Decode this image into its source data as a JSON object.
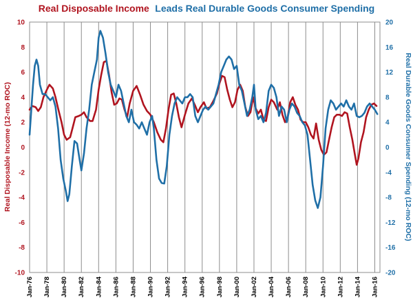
{
  "chart_data": {
    "type": "line",
    "title_part1": "Real Disposable Income",
    "title_part2": "Leads Real Durable Goods Consumer Spending",
    "ylabel_left": "Real Disposable Income (12-mo ROC)",
    "ylabel_right": "Real Durable Goods Consumer Spending (12-mo ROC)",
    "xlabel": "",
    "ylim_left": [
      -10,
      10
    ],
    "ylim_right": [
      -20,
      20
    ],
    "yticks_left": [
      -10,
      -8,
      -6,
      -4,
      -2,
      0,
      2,
      4,
      6,
      8,
      10
    ],
    "yticks_right": [
      -20,
      -16,
      -12,
      -8,
      -4,
      0,
      4,
      8,
      12,
      16,
      20
    ],
    "x_range": [
      1976.0,
      2016.6
    ],
    "xtick_labels": [
      "Jan-76",
      "Jan-78",
      "Jan-80",
      "Jan-82",
      "Jan-84",
      "Jan-86",
      "Jan-88",
      "Jan-90",
      "Jan-92",
      "Jan-94",
      "Jan-96",
      "Jan-98",
      "Jan-00",
      "Jan-02",
      "Jan-04",
      "Jan-06",
      "Jan-08",
      "Jan-10",
      "Jan-12",
      "Jan-14",
      "Jan-16"
    ],
    "grid": "vertical",
    "series": [
      {
        "name": "Real Disposable Income",
        "axis": "left",
        "color": "#b0141f",
        "points": [
          [
            1976.0,
            3.0
          ],
          [
            1976.3,
            3.3
          ],
          [
            1976.7,
            3.2
          ],
          [
            1977.0,
            2.9
          ],
          [
            1977.3,
            3.2
          ],
          [
            1977.6,
            4.0
          ],
          [
            1978.0,
            4.6
          ],
          [
            1978.3,
            5.0
          ],
          [
            1978.7,
            4.7
          ],
          [
            1979.0,
            4.0
          ],
          [
            1979.3,
            3.1
          ],
          [
            1979.7,
            2.0
          ],
          [
            1980.0,
            1.0
          ],
          [
            1980.3,
            0.6
          ],
          [
            1980.7,
            0.8
          ],
          [
            1981.0,
            1.6
          ],
          [
            1981.3,
            2.4
          ],
          [
            1981.7,
            2.5
          ],
          [
            1982.0,
            2.6
          ],
          [
            1982.3,
            2.8
          ],
          [
            1982.6,
            2.4
          ],
          [
            1983.0,
            2.1
          ],
          [
            1983.3,
            2.1
          ],
          [
            1983.7,
            3.0
          ],
          [
            1984.0,
            4.6
          ],
          [
            1984.3,
            5.8
          ],
          [
            1984.6,
            6.8
          ],
          [
            1984.9,
            6.9
          ],
          [
            1985.2,
            5.8
          ],
          [
            1985.5,
            4.4
          ],
          [
            1985.8,
            3.4
          ],
          [
            1986.1,
            3.5
          ],
          [
            1986.4,
            3.9
          ],
          [
            1986.7,
            3.8
          ],
          [
            1987.0,
            3.0
          ],
          [
            1987.3,
            2.4
          ],
          [
            1987.6,
            3.5
          ],
          [
            1988.0,
            4.5
          ],
          [
            1988.4,
            4.9
          ],
          [
            1988.8,
            4.2
          ],
          [
            1989.2,
            3.4
          ],
          [
            1989.6,
            2.9
          ],
          [
            1990.0,
            2.6
          ],
          [
            1990.4,
            2.0
          ],
          [
            1990.8,
            1.2
          ],
          [
            1991.2,
            0.6
          ],
          [
            1991.5,
            0.4
          ],
          [
            1991.8,
            1.5
          ],
          [
            1992.1,
            3.0
          ],
          [
            1992.4,
            4.2
          ],
          [
            1992.7,
            4.3
          ],
          [
            1993.0,
            3.5
          ],
          [
            1993.3,
            2.4
          ],
          [
            1993.6,
            1.6
          ],
          [
            1994.0,
            2.6
          ],
          [
            1994.4,
            3.5
          ],
          [
            1994.8,
            3.9
          ],
          [
            1995.2,
            3.3
          ],
          [
            1995.5,
            2.8
          ],
          [
            1995.8,
            3.2
          ],
          [
            1996.2,
            3.6
          ],
          [
            1996.5,
            3.1
          ],
          [
            1996.9,
            3.2
          ],
          [
            1997.3,
            3.7
          ],
          [
            1997.7,
            4.3
          ],
          [
            1998.0,
            5.1
          ],
          [
            1998.3,
            5.7
          ],
          [
            1998.6,
            5.6
          ],
          [
            1998.9,
            4.6
          ],
          [
            1999.2,
            3.8
          ],
          [
            1999.5,
            3.2
          ],
          [
            1999.8,
            3.6
          ],
          [
            2000.1,
            4.6
          ],
          [
            2000.4,
            5.0
          ],
          [
            2000.7,
            4.5
          ],
          [
            2001.0,
            3.2
          ],
          [
            2001.3,
            2.5
          ],
          [
            2001.6,
            2.8
          ],
          [
            2001.9,
            4.0
          ],
          [
            2002.2,
            3.1
          ],
          [
            2002.5,
            2.7
          ],
          [
            2002.8,
            3.0
          ],
          [
            2003.1,
            2.2
          ],
          [
            2003.4,
            2.1
          ],
          [
            2003.7,
            3.2
          ],
          [
            2004.0,
            3.8
          ],
          [
            2004.3,
            3.6
          ],
          [
            2004.7,
            3.0
          ],
          [
            2005.0,
            3.6
          ],
          [
            2005.3,
            2.6
          ],
          [
            2005.6,
            2.0
          ],
          [
            2005.9,
            2.4
          ],
          [
            2006.2,
            3.6
          ],
          [
            2006.5,
            4.0
          ],
          [
            2006.8,
            3.4
          ],
          [
            2007.1,
            3.0
          ],
          [
            2007.4,
            2.2
          ],
          [
            2007.7,
            2.0
          ],
          [
            2008.0,
            2.0
          ],
          [
            2008.3,
            1.6
          ],
          [
            2008.6,
            1.0
          ],
          [
            2008.9,
            0.7
          ],
          [
            2009.2,
            1.9
          ],
          [
            2009.5,
            0.6
          ],
          [
            2009.8,
            -0.2
          ],
          [
            2010.1,
            -0.6
          ],
          [
            2010.4,
            -0.4
          ],
          [
            2010.7,
            0.6
          ],
          [
            2011.0,
            1.6
          ],
          [
            2011.3,
            2.4
          ],
          [
            2011.6,
            2.6
          ],
          [
            2011.9,
            2.6
          ],
          [
            2012.2,
            2.5
          ],
          [
            2012.5,
            2.8
          ],
          [
            2012.8,
            2.7
          ],
          [
            2013.1,
            1.6
          ],
          [
            2013.4,
            0.6
          ],
          [
            2013.7,
            -0.6
          ],
          [
            2013.9,
            -1.4
          ],
          [
            2014.1,
            -0.9
          ],
          [
            2014.4,
            0.4
          ],
          [
            2014.7,
            1.2
          ],
          [
            2015.0,
            2.4
          ],
          [
            2015.3,
            3.0
          ],
          [
            2015.6,
            3.4
          ],
          [
            2015.9,
            3.5
          ],
          [
            2016.2,
            3.3
          ]
        ]
      },
      {
        "name": "Real Durable Goods Consumer Spending",
        "axis": "right",
        "color": "#1f6fa7",
        "points": [
          [
            1976.0,
            2.0
          ],
          [
            1976.2,
            6.0
          ],
          [
            1976.4,
            10.0
          ],
          [
            1976.6,
            13.0
          ],
          [
            1976.8,
            14.0
          ],
          [
            1977.0,
            13.0
          ],
          [
            1977.2,
            10.0
          ],
          [
            1977.5,
            8.5
          ],
          [
            1977.8,
            8.5
          ],
          [
            1978.1,
            8.0
          ],
          [
            1978.4,
            7.5
          ],
          [
            1978.7,
            8.0
          ],
          [
            1979.0,
            6.5
          ],
          [
            1979.3,
            3.0
          ],
          [
            1979.6,
            -2.0
          ],
          [
            1979.9,
            -5.0
          ],
          [
            1980.2,
            -7.0
          ],
          [
            1980.4,
            -8.6
          ],
          [
            1980.6,
            -7.5
          ],
          [
            1980.9,
            -3.0
          ],
          [
            1981.2,
            1.0
          ],
          [
            1981.5,
            0.6
          ],
          [
            1981.8,
            -2.0
          ],
          [
            1982.0,
            -3.7
          ],
          [
            1982.3,
            -1.0
          ],
          [
            1982.6,
            3.0
          ],
          [
            1982.9,
            6.0
          ],
          [
            1983.2,
            10.0
          ],
          [
            1983.5,
            12.0
          ],
          [
            1983.8,
            14.0
          ],
          [
            1984.0,
            17.5
          ],
          [
            1984.2,
            18.6
          ],
          [
            1984.5,
            17.5
          ],
          [
            1984.8,
            15.0
          ],
          [
            1985.1,
            12.0
          ],
          [
            1985.4,
            10.0
          ],
          [
            1985.7,
            9.0
          ],
          [
            1986.0,
            8.0
          ],
          [
            1986.3,
            10.0
          ],
          [
            1986.6,
            9.0
          ],
          [
            1986.9,
            7.0
          ],
          [
            1987.2,
            5.0
          ],
          [
            1987.5,
            4.0
          ],
          [
            1987.8,
            6.0
          ],
          [
            1988.1,
            4.0
          ],
          [
            1988.4,
            3.6
          ],
          [
            1988.7,
            3.0
          ],
          [
            1989.0,
            4.0
          ],
          [
            1989.3,
            3.0
          ],
          [
            1989.6,
            2.0
          ],
          [
            1989.9,
            4.0
          ],
          [
            1990.2,
            5.0
          ],
          [
            1990.4,
            3.0
          ],
          [
            1990.7,
            -2.0
          ],
          [
            1991.0,
            -5.0
          ],
          [
            1991.3,
            -5.7
          ],
          [
            1991.6,
            -5.8
          ],
          [
            1991.9,
            -3.0
          ],
          [
            1992.2,
            2.0
          ],
          [
            1992.5,
            5.0
          ],
          [
            1992.8,
            7.0
          ],
          [
            1993.1,
            8.0
          ],
          [
            1993.4,
            7.5
          ],
          [
            1993.7,
            7.0
          ],
          [
            1994.0,
            8.0
          ],
          [
            1994.3,
            8.0
          ],
          [
            1994.6,
            8.5
          ],
          [
            1994.9,
            8.0
          ],
          [
            1995.2,
            5.0
          ],
          [
            1995.5,
            4.0
          ],
          [
            1995.8,
            5.0
          ],
          [
            1996.1,
            6.0
          ],
          [
            1996.4,
            6.5
          ],
          [
            1996.7,
            6.0
          ],
          [
            1997.0,
            6.5
          ],
          [
            1997.3,
            7.0
          ],
          [
            1997.6,
            8.5
          ],
          [
            1997.9,
            10.0
          ],
          [
            1998.2,
            12.0
          ],
          [
            1998.5,
            13.0
          ],
          [
            1998.8,
            14.0
          ],
          [
            1999.1,
            14.5
          ],
          [
            1999.4,
            14.0
          ],
          [
            1999.7,
            12.5
          ],
          [
            2000.0,
            13.0
          ],
          [
            2000.3,
            10.0
          ],
          [
            2000.6,
            9.0
          ],
          [
            2000.9,
            7.0
          ],
          [
            2001.2,
            5.0
          ],
          [
            2001.5,
            6.0
          ],
          [
            2001.8,
            8.0
          ],
          [
            2002.0,
            10.0
          ],
          [
            2002.2,
            6.0
          ],
          [
            2002.5,
            4.5
          ],
          [
            2002.8,
            5.0
          ],
          [
            2003.1,
            4.0
          ],
          [
            2003.4,
            5.5
          ],
          [
            2003.7,
            9.0
          ],
          [
            2004.0,
            10.0
          ],
          [
            2004.3,
            9.5
          ],
          [
            2004.6,
            8.0
          ],
          [
            2004.9,
            5.0
          ],
          [
            2005.2,
            6.5
          ],
          [
            2005.5,
            6.0
          ],
          [
            2005.8,
            4.0
          ],
          [
            2006.1,
            6.0
          ],
          [
            2006.4,
            7.0
          ],
          [
            2006.7,
            6.5
          ],
          [
            2007.0,
            5.5
          ],
          [
            2007.3,
            5.0
          ],
          [
            2007.6,
            4.0
          ],
          [
            2007.9,
            3.5
          ],
          [
            2008.2,
            2.0
          ],
          [
            2008.5,
            -2.0
          ],
          [
            2008.8,
            -6.0
          ],
          [
            2009.1,
            -8.5
          ],
          [
            2009.4,
            -9.7
          ],
          [
            2009.7,
            -8.0
          ],
          [
            2010.0,
            -3.0
          ],
          [
            2010.3,
            3.0
          ],
          [
            2010.6,
            6.0
          ],
          [
            2010.9,
            7.5
          ],
          [
            2011.2,
            7.0
          ],
          [
            2011.5,
            6.0
          ],
          [
            2011.8,
            6.5
          ],
          [
            2012.1,
            7.0
          ],
          [
            2012.4,
            6.5
          ],
          [
            2012.7,
            7.5
          ],
          [
            2013.0,
            6.5
          ],
          [
            2013.3,
            6.0
          ],
          [
            2013.6,
            7.0
          ],
          [
            2013.9,
            5.0
          ],
          [
            2014.2,
            4.8
          ],
          [
            2014.5,
            5.0
          ],
          [
            2014.8,
            5.5
          ],
          [
            2015.1,
            6.5
          ],
          [
            2015.4,
            7.0
          ],
          [
            2015.7,
            6.5
          ],
          [
            2016.0,
            6.0
          ],
          [
            2016.3,
            5.3
          ]
        ]
      }
    ]
  }
}
